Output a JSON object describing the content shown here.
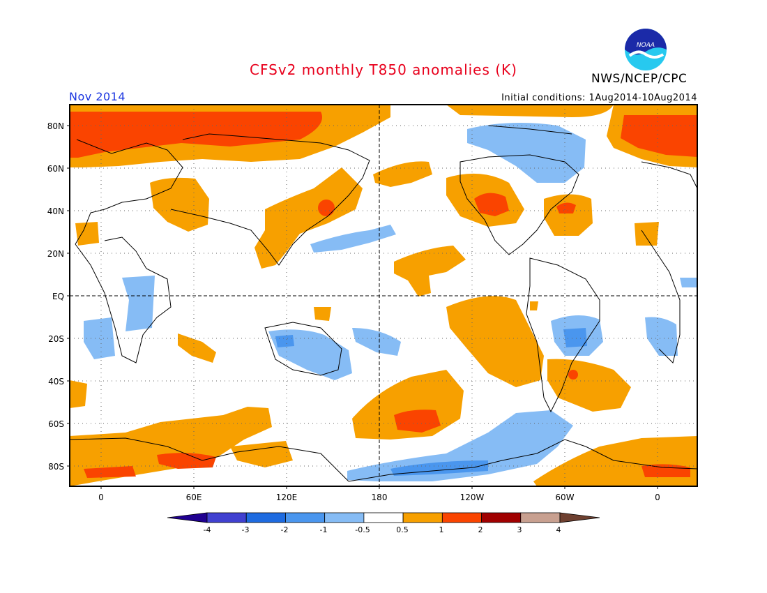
{
  "header": {
    "title": "CFSv2 monthly T850 anomalies (K)",
    "org": "NWS/NCEP/CPC",
    "month": "Nov 2014",
    "initial_conditions": "Initial conditions: 1Aug2014-10Aug2014",
    "logo_text": "NOAA"
  },
  "axes": {
    "lat_ticks": [
      "80N",
      "60N",
      "40N",
      "20N",
      "EQ",
      "20S",
      "40S",
      "60S",
      "80S"
    ],
    "lon_ticks": [
      "0",
      "60E",
      "120E",
      "180",
      "120W",
      "60W",
      "0"
    ]
  },
  "colorbar": {
    "labels": [
      "-4",
      "-3",
      "-2",
      "-1",
      "-0.5",
      "0.5",
      "1",
      "2",
      "3",
      "4"
    ],
    "colors": [
      "#200090",
      "#4040d0",
      "#1e6be0",
      "#4a96ee",
      "#86bcf5",
      "#ffffff",
      "#f7a000",
      "#fa4400",
      "#a00000",
      "#c8a090",
      "#6e4030"
    ]
  },
  "colors": {
    "orange": "#f7a000",
    "red": "#fa4400",
    "light_blue": "#86bcf5",
    "mid_blue": "#4a96ee",
    "deep_blue": "#1e6be0"
  }
}
